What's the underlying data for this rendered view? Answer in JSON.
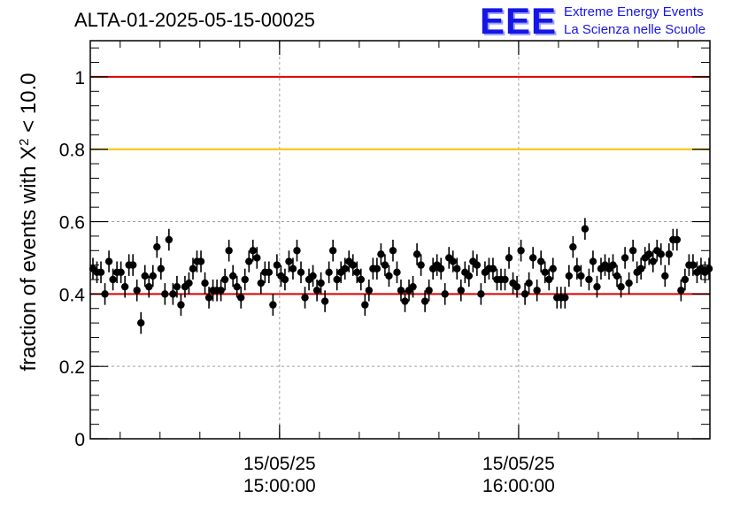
{
  "header": {
    "title": "ALTA-01-2025-05-15-00025",
    "logo_letters": "EEE",
    "logo_line1": "Extreme Energy Events",
    "logo_line2": "La Scienza nelle Scuole"
  },
  "colors": {
    "marker": "#000000",
    "upper_threshold": "#e00000",
    "warning_threshold": "#ffc000",
    "lower_threshold": "#e00000",
    "grid": "#a0a0a0",
    "logo": "#1515e6"
  },
  "chart_data": {
    "type": "scatter",
    "title": "ALTA-01-2025-05-15-00025",
    "xlabel": "",
    "ylabel": "fraction of events with X² < 10.0",
    "ylabel_parts": {
      "prefix": "fraction of events with X",
      "sup": "2",
      "suffix": " < 10.0"
    },
    "xlim": [
      "15/05/25 14:12:30",
      "15/05/25 16:48:00"
    ],
    "ylim": [
      0,
      1.1
    ],
    "yticks": [
      0,
      0.2,
      0.4,
      0.6,
      0.8,
      1
    ],
    "ytick_labels": [
      "0",
      "0.2",
      "0.4",
      "0.6",
      "0.8",
      "1"
    ],
    "xticks": [
      {
        "time": "15/05/25 15:00:00",
        "date_label": "15/05/25",
        "time_label": "15:00:00"
      },
      {
        "time": "15/05/25 16:00:00",
        "date_label": "15/05/25",
        "time_label": "16:00:00"
      }
    ],
    "grid": true,
    "reference_lines": [
      {
        "y": 1.0,
        "color": "#e00000"
      },
      {
        "y": 0.8,
        "color": "#ffc000"
      },
      {
        "y": 0.4,
        "color": "#e00000"
      }
    ],
    "error_bar": 0.03,
    "series": [
      {
        "values": [
          0.47,
          0.46,
          0.46,
          0.4,
          0.49,
          0.44,
          0.46,
          0.46,
          0.42,
          0.48,
          0.48,
          0.41,
          0.32,
          0.45,
          0.42,
          0.45,
          0.53,
          0.47,
          0.4,
          0.55,
          0.4,
          0.42,
          0.37,
          0.42,
          0.43,
          0.47,
          0.49,
          0.49,
          0.43,
          0.39,
          0.41,
          0.41,
          0.41,
          0.44,
          0.52,
          0.45,
          0.42,
          0.39,
          0.44,
          0.49,
          0.52,
          0.5,
          0.43,
          0.46,
          0.46,
          0.37,
          0.48,
          0.45,
          0.44,
          0.49,
          0.47,
          0.52,
          0.46,
          0.39,
          0.44,
          0.45,
          0.41,
          0.43,
          0.38,
          0.46,
          0.52,
          0.44,
          0.46,
          0.47,
          0.49,
          0.48,
          0.46,
          0.44,
          0.37,
          0.41,
          0.47,
          0.47,
          0.51,
          0.48,
          0.45,
          0.52,
          0.46,
          0.41,
          0.38,
          0.41,
          0.42,
          0.51,
          0.48,
          0.38,
          0.41,
          0.47,
          0.48,
          0.47,
          0.4,
          0.5,
          0.49,
          0.47,
          0.41,
          0.46,
          0.45,
          0.49,
          0.48,
          0.4,
          0.46,
          0.47,
          0.47,
          0.44,
          0.44,
          0.44,
          0.5,
          0.43,
          0.42,
          0.52,
          0.4,
          0.43,
          0.5,
          0.41,
          0.49,
          0.46,
          0.44,
          0.47,
          0.39,
          0.39,
          0.39,
          0.45,
          0.53,
          0.47,
          0.45,
          0.58,
          0.44,
          0.49,
          0.42,
          0.47,
          0.48,
          0.47,
          0.48,
          0.45,
          0.42,
          0.5,
          0.43,
          0.52,
          0.46,
          0.47,
          0.5,
          0.51,
          0.49,
          0.52,
          0.51,
          0.45,
          0.51,
          0.55,
          0.55,
          0.41,
          0.44,
          0.48,
          0.48,
          0.46,
          0.47,
          0.46,
          0.47
        ]
      }
    ]
  }
}
